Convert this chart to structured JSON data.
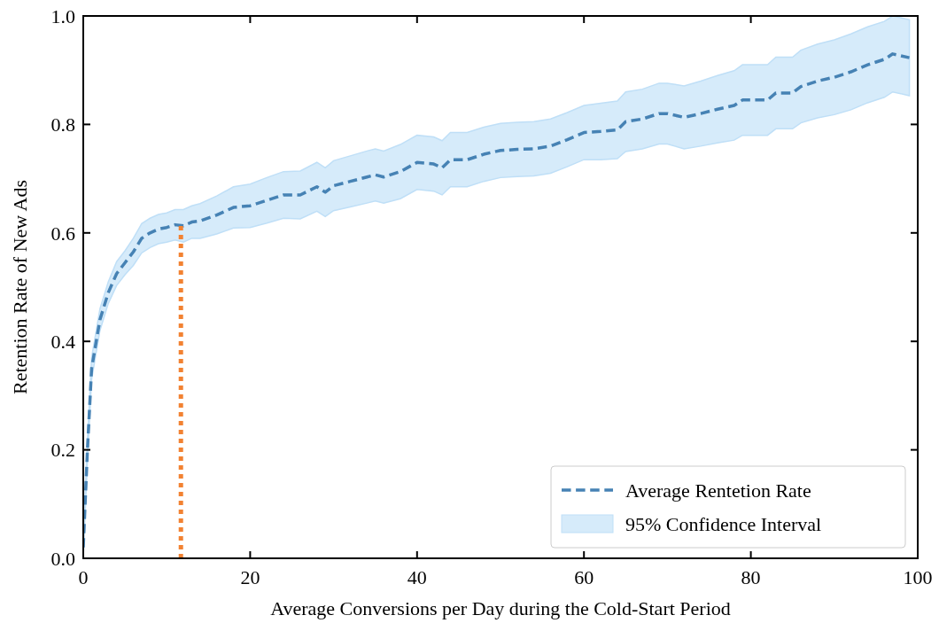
{
  "chart_data": {
    "type": "line",
    "xlabel": "Average Conversions per Day during the Cold-Start Period",
    "ylabel": "Retention Rate of New Ads",
    "x": [
      0,
      0.5,
      1,
      2,
      3,
      4,
      5,
      6,
      7,
      8,
      9,
      10,
      11,
      12,
      13,
      14,
      16,
      18,
      20,
      22,
      24,
      26,
      28,
      29,
      30,
      32,
      34,
      35,
      36,
      38,
      40,
      42,
      43,
      44,
      46,
      48,
      50,
      52,
      54,
      56,
      58,
      60,
      62,
      64,
      65,
      67,
      69,
      70,
      72,
      74,
      76,
      78,
      79,
      82,
      83,
      85,
      86,
      88,
      90,
      92,
      94,
      96,
      97,
      99
    ],
    "series": [
      {
        "name": "Average Rentetion Rate",
        "color": "#4682b4",
        "line_style": "dashed",
        "values": [
          0.02,
          0.2,
          0.35,
          0.44,
          0.49,
          0.525,
          0.545,
          0.565,
          0.59,
          0.6,
          0.607,
          0.61,
          0.615,
          0.613,
          0.62,
          0.622,
          0.633,
          0.647,
          0.65,
          0.66,
          0.67,
          0.67,
          0.685,
          0.675,
          0.687,
          0.695,
          0.703,
          0.707,
          0.703,
          0.713,
          0.73,
          0.727,
          0.72,
          0.735,
          0.735,
          0.745,
          0.752,
          0.754,
          0.755,
          0.76,
          0.772,
          0.785,
          0.787,
          0.79,
          0.805,
          0.81,
          0.82,
          0.82,
          0.813,
          0.82,
          0.828,
          0.835,
          0.845,
          0.845,
          0.858,
          0.858,
          0.87,
          0.88,
          0.887,
          0.897,
          0.91,
          0.92,
          0.93,
          0.923
        ],
        "upper": [
          0.04,
          0.22,
          0.37,
          0.46,
          0.51,
          0.547,
          0.567,
          0.59,
          0.617,
          0.627,
          0.634,
          0.637,
          0.643,
          0.643,
          0.65,
          0.654,
          0.668,
          0.685,
          0.69,
          0.702,
          0.713,
          0.714,
          0.73,
          0.72,
          0.733,
          0.742,
          0.751,
          0.755,
          0.751,
          0.763,
          0.78,
          0.777,
          0.77,
          0.785,
          0.785,
          0.795,
          0.802,
          0.804,
          0.805,
          0.81,
          0.822,
          0.835,
          0.839,
          0.843,
          0.86,
          0.865,
          0.876,
          0.876,
          0.871,
          0.88,
          0.89,
          0.899,
          0.91,
          0.91,
          0.924,
          0.924,
          0.937,
          0.948,
          0.956,
          0.967,
          0.98,
          0.99,
          1.0,
          0.993
        ],
        "lower": [
          0.0,
          0.18,
          0.33,
          0.42,
          0.47,
          0.503,
          0.523,
          0.54,
          0.563,
          0.573,
          0.58,
          0.583,
          0.587,
          0.583,
          0.59,
          0.59,
          0.598,
          0.609,
          0.61,
          0.618,
          0.627,
          0.626,
          0.64,
          0.63,
          0.641,
          0.648,
          0.655,
          0.659,
          0.655,
          0.663,
          0.68,
          0.677,
          0.67,
          0.685,
          0.685,
          0.695,
          0.702,
          0.704,
          0.705,
          0.71,
          0.722,
          0.735,
          0.735,
          0.737,
          0.75,
          0.755,
          0.764,
          0.764,
          0.755,
          0.76,
          0.766,
          0.771,
          0.78,
          0.78,
          0.792,
          0.792,
          0.803,
          0.812,
          0.818,
          0.827,
          0.84,
          0.85,
          0.86,
          0.853
        ]
      }
    ],
    "annotations": [
      "95% Confidence Interval"
    ],
    "ref_lines": [
      {
        "axis": "x",
        "value": 11.7,
        "color": "#f28232",
        "line_style": "dotted"
      }
    ],
    "xlim": [
      0,
      100
    ],
    "xticks": [
      0,
      20,
      40,
      60,
      80,
      100
    ],
    "ylim": [
      0,
      1
    ],
    "yticks": [
      {
        "value": 0,
        "label": "0.0"
      },
      {
        "value": 0.2,
        "label": "0.2"
      },
      {
        "value": 0.4,
        "label": "0.4"
      },
      {
        "value": 0.6,
        "label": "0.6"
      },
      {
        "value": 0.8,
        "label": "0.8"
      },
      {
        "value": 1,
        "label": "1.0"
      }
    ],
    "legend": "bottom right",
    "grid": false,
    "marker": "none"
  }
}
